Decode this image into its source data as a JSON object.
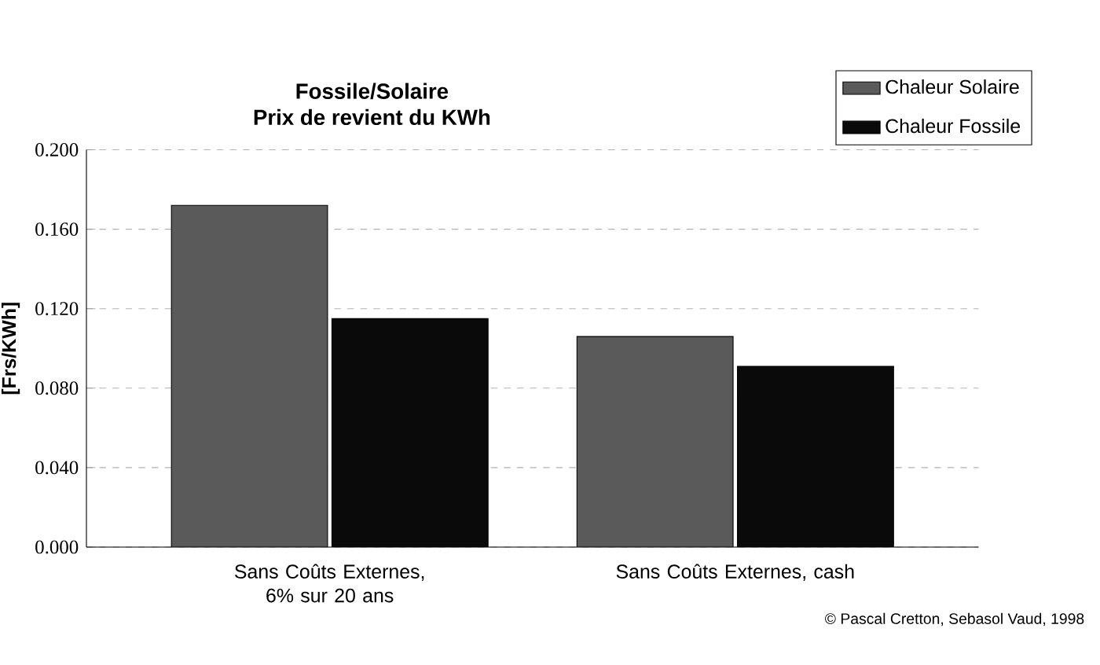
{
  "chart_data": {
    "type": "bar",
    "title": "Fossile/Solaire",
    "subtitle": "Prix de revient du KWh",
    "ylabel": "[Frs/KWh]",
    "categories": [
      "Sans Coûts Externes, 6% sur 20 ans",
      "Sans Coûts Externes, cash"
    ],
    "series": [
      {
        "name": "Chaleur Solaire",
        "color": "#5a5a5a",
        "values": [
          0.172,
          0.106
        ]
      },
      {
        "name": "Chaleur Fossile",
        "color": "#0a0a0a",
        "values": [
          0.115,
          0.091
        ]
      }
    ],
    "ylim": [
      0,
      0.2
    ],
    "yticks": [
      {
        "value": 0,
        "label": "0.000"
      },
      {
        "value": 0.04,
        "label": "0.040"
      },
      {
        "value": 0.08,
        "label": "0.080"
      },
      {
        "value": 0.12,
        "label": "0.120"
      },
      {
        "value": 0.16,
        "label": "0.160"
      },
      {
        "value": 0.2,
        "label": "0.200"
      }
    ],
    "grid": "y",
    "legend": "top right",
    "annotations": [
      "© Pascal Cretton, Sebasol Vaud, 1998"
    ]
  }
}
